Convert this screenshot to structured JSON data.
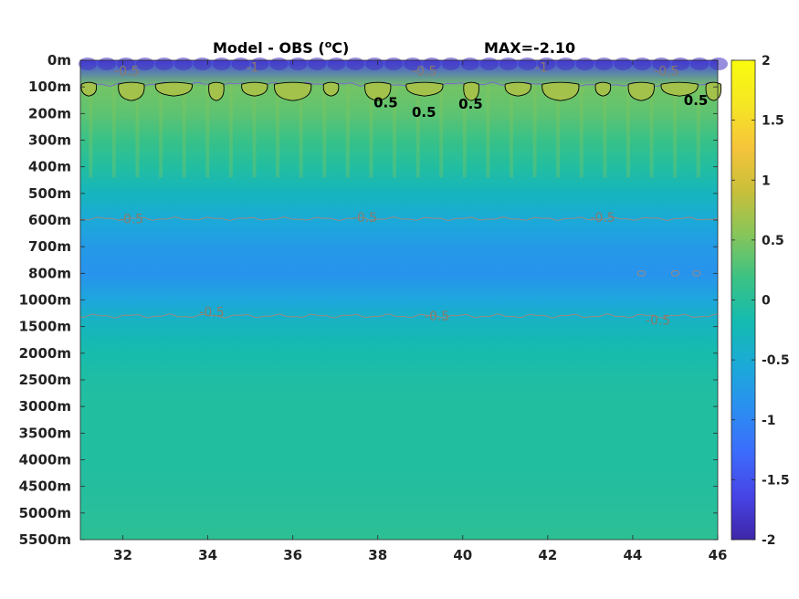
{
  "chart_data": {
    "type": "heatmap",
    "title": "Model - OBS (",
    "title_superscript": "o",
    "title_suffix": "C)",
    "max_label": "MAX=-2.10",
    "y_ticks": [
      "0m",
      "100m",
      "200m",
      "300m",
      "400m",
      "500m",
      "600m",
      "700m",
      "800m",
      "1000m",
      "1500m",
      "2000m",
      "2500m",
      "3000m",
      "3500m",
      "4000m",
      "4500m",
      "5000m",
      "5500m"
    ],
    "x_ticks": [
      32,
      34,
      36,
      38,
      40,
      42,
      44,
      46
    ],
    "xlim": [
      31,
      46
    ],
    "colorbar": {
      "ticks": [
        2,
        1.5,
        1,
        0.5,
        0,
        -0.5,
        -1,
        -1.5,
        -2
      ],
      "tick_labels": [
        "2",
        "1.5",
        "1",
        "0.5",
        "0",
        "-0.5",
        "-1",
        "-1.5",
        "-2"
      ],
      "range": [
        -2,
        2
      ],
      "colors": [
        "#3e26a8",
        "#4744e6",
        "#3c6cfc",
        "#2b8ef1",
        "#1baad8",
        "#14bbb0",
        "#3bc284",
        "#87c55a",
        "#c9bf3a",
        "#f6c43b",
        "#f5e723",
        "#f9fb0e"
      ]
    },
    "value_profile": {
      "depth_levels": [
        "0m",
        "100m",
        "200m",
        "300m",
        "400m",
        "500m",
        "600m",
        "700m",
        "800m",
        "1000m",
        "1500m",
        "2000m",
        "2500m",
        "3000m",
        "3500m",
        "4000m",
        "4500m",
        "5000m",
        "5500m"
      ],
      "mean_values": [
        -1.6,
        0.45,
        0.35,
        0.15,
        -0.05,
        -0.3,
        -0.55,
        -0.75,
        -0.85,
        -0.6,
        -0.3,
        -0.15,
        -0.08,
        -0.05,
        -0.05,
        -0.05,
        -0.03,
        0.0,
        0.05
      ]
    },
    "contour_labels_gray": [
      {
        "text": "-0.5",
        "x": 31.8,
        "depth_index": 0.4
      },
      {
        "text": "-1",
        "x": 34.9,
        "depth_index": 0.25
      },
      {
        "text": "-0.5",
        "x": 38.8,
        "depth_index": 0.4
      },
      {
        "text": "-1",
        "x": 41.7,
        "depth_index": 0.25
      },
      {
        "text": "-0.5",
        "x": 44.5,
        "depth_index": 0.4
      },
      {
        "text": "-0.5",
        "x": 31.9,
        "depth_index": 5.95
      },
      {
        "text": "-0.5",
        "x": 37.4,
        "depth_index": 5.9
      },
      {
        "text": "-0.5",
        "x": 43.0,
        "depth_index": 5.9
      },
      {
        "text": "-0.5",
        "x": 33.8,
        "depth_index": 9.45
      },
      {
        "text": "-0.5",
        "x": 39.1,
        "depth_index": 9.6
      },
      {
        "text": "-0.5",
        "x": 44.3,
        "depth_index": 9.75
      }
    ],
    "contour_labels_black": [
      {
        "text": "0.5",
        "x": 37.9,
        "depth_index": 1.6
      },
      {
        "text": "0.5",
        "x": 38.8,
        "depth_index": 1.95
      },
      {
        "text": "0.5",
        "x": 39.9,
        "depth_index": 1.65
      },
      {
        "text": "0.5",
        "x": 45.2,
        "depth_index": 1.5
      }
    ]
  }
}
